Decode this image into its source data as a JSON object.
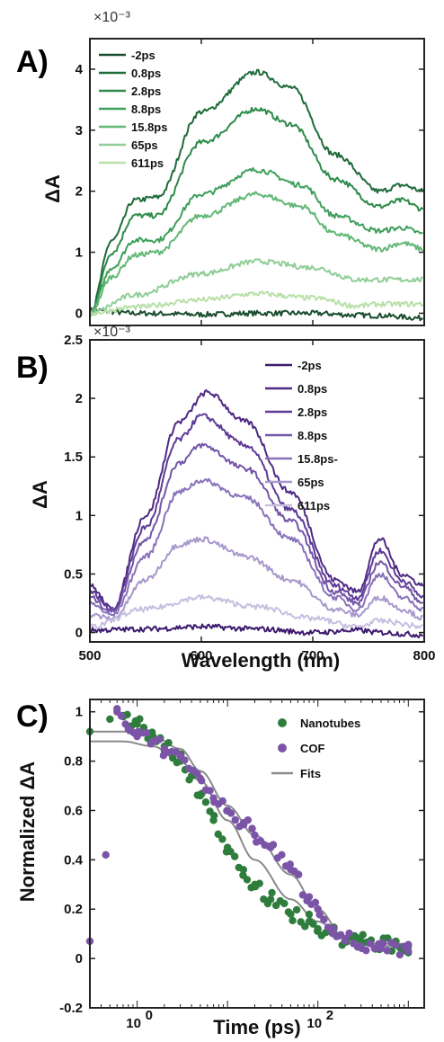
{
  "chart_data": [
    {
      "panel": "A)",
      "type": "line",
      "ylabel": "ΔA",
      "exponent": "×10⁻³",
      "xlim": [
        500,
        800
      ],
      "ylim": [
        -0.2,
        4.5
      ],
      "yticks": [
        "0",
        "1",
        "2",
        "3",
        "4"
      ],
      "ytick_values": [
        0,
        1,
        2,
        3,
        4
      ],
      "legend_position": "top-left",
      "colors": [
        "#1a4d2e",
        "#1f6b3a",
        "#2e8b4a",
        "#3fa05c",
        "#63b876",
        "#8fce96",
        "#b8e0a8"
      ],
      "series": [
        {
          "name": "-2ps",
          "x": [
            500,
            540,
            600,
            650,
            700,
            740,
            760,
            800
          ],
          "y": [
            0.05,
            0.0,
            -0.02,
            0.0,
            0.0,
            -0.03,
            -0.04,
            -0.08
          ]
        },
        {
          "name": "0.8ps",
          "x": [
            500,
            520,
            540,
            560,
            600,
            650,
            680,
            720,
            760,
            780,
            800
          ],
          "y": [
            0.0,
            1.2,
            1.85,
            1.9,
            3.3,
            3.95,
            3.7,
            2.6,
            2.0,
            2.1,
            2.0
          ]
        },
        {
          "name": "2.8ps",
          "x": [
            500,
            520,
            540,
            560,
            600,
            650,
            680,
            720,
            760,
            780,
            800
          ],
          "y": [
            0.0,
            1.0,
            1.6,
            1.6,
            2.8,
            3.35,
            3.1,
            2.2,
            1.75,
            1.85,
            1.7
          ]
        },
        {
          "name": "8.8ps",
          "x": [
            500,
            520,
            540,
            560,
            600,
            650,
            690,
            720,
            760,
            780,
            800
          ],
          "y": [
            0.0,
            0.75,
            1.2,
            1.2,
            1.95,
            2.35,
            2.1,
            1.6,
            1.35,
            1.4,
            1.3
          ]
        },
        {
          "name": "15.8ps",
          "x": [
            500,
            520,
            540,
            560,
            600,
            650,
            690,
            720,
            760,
            780,
            800
          ],
          "y": [
            0.0,
            0.6,
            0.95,
            1.0,
            1.6,
            1.95,
            1.75,
            1.3,
            1.05,
            1.15,
            1.05
          ]
        },
        {
          "name": "65ps",
          "x": [
            500,
            540,
            600,
            650,
            700,
            740,
            760,
            800
          ],
          "y": [
            0.0,
            0.3,
            0.65,
            0.85,
            0.75,
            0.55,
            0.55,
            0.55
          ]
        },
        {
          "name": "611ps",
          "x": [
            500,
            540,
            600,
            650,
            700,
            740,
            760,
            800
          ],
          "y": [
            0.0,
            0.1,
            0.22,
            0.32,
            0.25,
            0.12,
            0.15,
            0.15
          ]
        }
      ]
    },
    {
      "panel": "B)",
      "type": "line",
      "ylabel": "ΔA",
      "xlabel": "Wavelength (nm)",
      "exponent": "×10⁻³",
      "xlim": [
        500,
        800
      ],
      "ylim": [
        -0.08,
        2.5
      ],
      "xticks": [
        "500",
        "600",
        "700",
        "800"
      ],
      "xtick_values": [
        500,
        600,
        700,
        800
      ],
      "yticks": [
        "0",
        "0.5",
        "1",
        "1.5",
        "2",
        "2.5"
      ],
      "ytick_values": [
        0,
        0.5,
        1,
        1.5,
        2,
        2.5
      ],
      "legend_position": "top-right",
      "colors": [
        "#3d1a6e",
        "#4e2a84",
        "#5e3a96",
        "#7455a8",
        "#8a72ba",
        "#a898cc",
        "#c8bfe0"
      ],
      "series": [
        {
          "name": "-2ps",
          "x": [
            500,
            550,
            600,
            650,
            700,
            740,
            760,
            800
          ],
          "y": [
            0.02,
            0.03,
            0.05,
            0.03,
            0.0,
            0.02,
            0.0,
            -0.02
          ]
        },
        {
          "name": "0.8ps",
          "x": [
            500,
            520,
            550,
            580,
            605,
            640,
            680,
            720,
            740,
            760,
            780,
            800
          ],
          "y": [
            0.4,
            0.2,
            1.0,
            1.8,
            2.05,
            1.8,
            1.2,
            0.45,
            0.35,
            0.8,
            0.5,
            0.4
          ]
        },
        {
          "name": "2.8ps",
          "x": [
            500,
            520,
            550,
            580,
            600,
            640,
            680,
            720,
            740,
            760,
            780,
            800
          ],
          "y": [
            0.35,
            0.2,
            0.9,
            1.65,
            1.85,
            1.6,
            1.05,
            0.4,
            0.3,
            0.7,
            0.45,
            0.3
          ]
        },
        {
          "name": "8.8ps",
          "x": [
            500,
            520,
            550,
            580,
            600,
            640,
            680,
            720,
            740,
            760,
            780,
            800
          ],
          "y": [
            0.3,
            0.18,
            0.8,
            1.45,
            1.6,
            1.4,
            0.95,
            0.35,
            0.25,
            0.6,
            0.4,
            0.25
          ]
        },
        {
          "name": "15.8ps",
          "x": [
            500,
            520,
            550,
            580,
            600,
            640,
            680,
            720,
            740,
            760,
            780,
            800
          ],
          "y": [
            0.25,
            0.15,
            0.65,
            1.2,
            1.3,
            1.15,
            0.8,
            0.3,
            0.2,
            0.5,
            0.3,
            0.2
          ]
        },
        {
          "name": "65ps",
          "x": [
            500,
            520,
            550,
            580,
            600,
            640,
            680,
            720,
            740,
            760,
            780,
            800
          ],
          "y": [
            0.15,
            0.12,
            0.45,
            0.75,
            0.8,
            0.65,
            0.45,
            0.2,
            0.15,
            0.3,
            0.2,
            0.12
          ]
        },
        {
          "name": "611ps",
          "x": [
            500,
            550,
            600,
            650,
            700,
            740,
            760,
            800
          ],
          "y": [
            0.05,
            0.2,
            0.3,
            0.22,
            0.12,
            0.05,
            0.1,
            0.05
          ]
        }
      ],
      "legend_labels": [
        "-2ps",
        "0.8ps",
        "2.8ps",
        "8.8ps",
        "15.8ps-",
        "65ps",
        "611ps"
      ]
    },
    {
      "panel": "C)",
      "type": "scatter",
      "xlabel": "Time (ps)",
      "ylabel": "Normalized ΔA",
      "xscale": "log",
      "xlim": [
        0.3,
        1500
      ],
      "ylim": [
        -0.2,
        1.05
      ],
      "xticks": [
        "10",
        "10"
      ],
      "xtick_exponents": [
        "0",
        "2"
      ],
      "xtick_values": [
        1,
        100
      ],
      "yticks": [
        "-0.2",
        "0",
        "0.2",
        "0.4",
        "0.6",
        "0.8",
        "1"
      ],
      "ytick_values": [
        -0.2,
        0,
        0.2,
        0.4,
        0.6,
        0.8,
        1
      ],
      "legend_position": "top-right",
      "legend": [
        {
          "name": "Nanotubes",
          "color": "#2e7d3c",
          "marker": "circle"
        },
        {
          "name": "COF",
          "color": "#7b54a8",
          "marker": "circle"
        },
        {
          "name": "Fits",
          "color": "#8a8a8a",
          "marker": "line"
        }
      ],
      "series": [
        {
          "name": "Nanotubes",
          "x": [
            0.3,
            0.5,
            0.7,
            1.0,
            1.5,
            2,
            3,
            4,
            5,
            7,
            10,
            15,
            20,
            30,
            50,
            80,
            100,
            150,
            200,
            300,
            500,
            1000
          ],
          "y": [
            0.92,
            0.97,
            0.98,
            0.95,
            0.9,
            0.86,
            0.8,
            0.74,
            0.66,
            0.56,
            0.45,
            0.36,
            0.3,
            0.24,
            0.18,
            0.15,
            0.12,
            0.1,
            0.08,
            0.07,
            0.06,
            0.05
          ]
        },
        {
          "name": "COF",
          "x": [
            0.3,
            0.45,
            0.6,
            0.8,
            1.0,
            1.5,
            2,
            3,
            5,
            7,
            10,
            15,
            20,
            30,
            50,
            80,
            100,
            150,
            200,
            300,
            500,
            1000
          ],
          "y": [
            0.07,
            0.42,
            1.0,
            0.93,
            0.9,
            0.88,
            0.85,
            0.82,
            0.73,
            0.65,
            0.6,
            0.55,
            0.5,
            0.45,
            0.36,
            0.25,
            0.2,
            0.12,
            0.08,
            0.05,
            0.04,
            0.03
          ]
        },
        {
          "name": "Fits",
          "x": [
            0.3,
            0.7,
            1.5,
            3,
            5,
            10,
            20,
            50,
            100,
            200,
            400,
            1000
          ],
          "y": [
            0.88,
            0.88,
            0.86,
            0.8,
            0.72,
            0.56,
            0.4,
            0.24,
            0.15,
            0.08,
            0.06,
            0.06
          ]
        },
        {
          "name": "Fits",
          "x": [
            0.3,
            0.7,
            1.5,
            3,
            5,
            10,
            20,
            50,
            100,
            200,
            400,
            1000
          ],
          "y": [
            0.92,
            0.92,
            0.9,
            0.85,
            0.76,
            0.62,
            0.5,
            0.34,
            0.2,
            0.08,
            0.05,
            0.05
          ]
        }
      ]
    }
  ]
}
